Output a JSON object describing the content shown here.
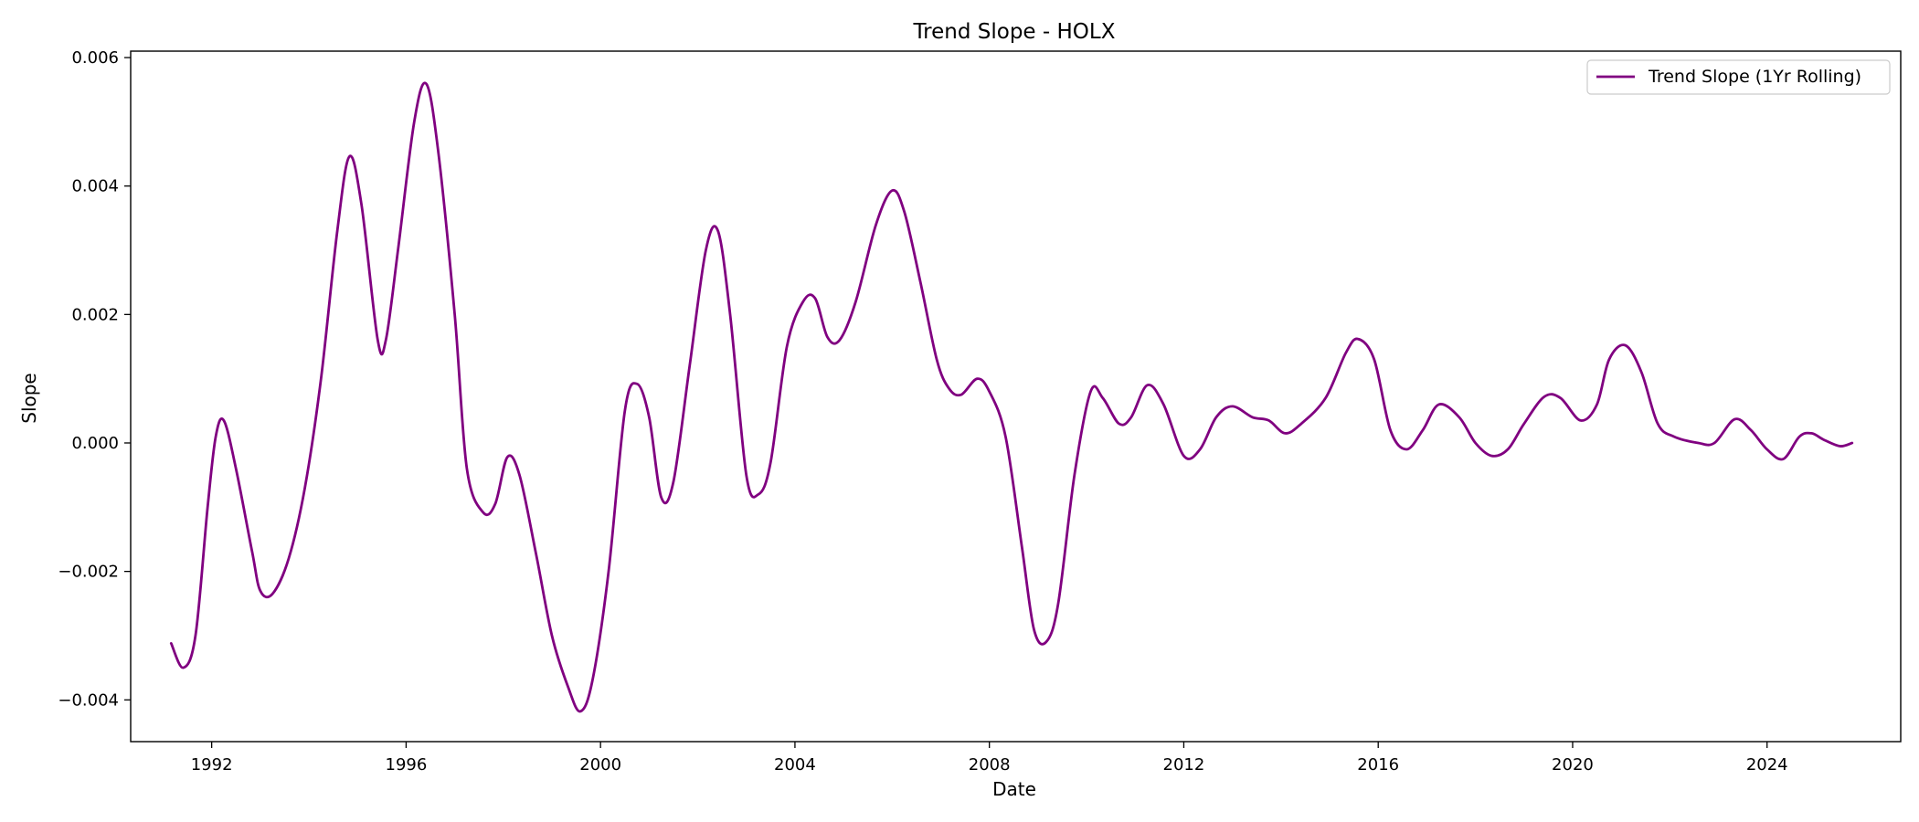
{
  "chart_data": {
    "type": "line",
    "title": "Trend Slope - HOLX",
    "xlabel": "Date",
    "ylabel": "Slope",
    "xlim": [
      "1990-05-01",
      "2026-10-01"
    ],
    "ylim": [
      -0.00465,
      0.0061
    ],
    "x_ticks": [
      "1992",
      "1996",
      "2000",
      "2004",
      "2008",
      "2012",
      "2016",
      "2020",
      "2024"
    ],
    "y_ticks": [
      "−0.004",
      "−0.002",
      "0.000",
      "0.002",
      "0.004",
      "0.006"
    ],
    "grid": false,
    "legend_position": "top-right",
    "line_color": "#800080",
    "series": [
      {
        "name": "Trend Slope (1Yr Rolling)",
        "points": [
          [
            "1991-03",
            -0.00312
          ],
          [
            "1991-06",
            -0.0035
          ],
          [
            "1991-09",
            -0.003
          ],
          [
            "1991-12",
            -0.001
          ],
          [
            "1992-02",
            0.0001
          ],
          [
            "1992-04",
            0.00035
          ],
          [
            "1992-07",
            -0.0004
          ],
          [
            "1992-11",
            -0.0017
          ],
          [
            "1993-01",
            -0.0023
          ],
          [
            "1993-04",
            -0.00235
          ],
          [
            "1993-08",
            -0.0018
          ],
          [
            "1993-12",
            -0.0007
          ],
          [
            "1994-04",
            0.001
          ],
          [
            "1994-08",
            0.0033
          ],
          [
            "1994-11",
            0.00446
          ],
          [
            "1995-02",
            0.0037
          ],
          [
            "1995-06",
            0.0016
          ],
          [
            "1995-08",
            0.0016
          ],
          [
            "1995-11",
            0.003
          ],
          [
            "1996-03",
            0.005
          ],
          [
            "1996-06",
            0.00559
          ],
          [
            "1996-09",
            0.0045
          ],
          [
            "1997-01",
            0.002
          ],
          [
            "1997-04",
            -0.0004
          ],
          [
            "1997-08",
            -0.00108
          ],
          [
            "1997-11",
            -0.00095
          ],
          [
            "1998-02",
            -0.00022
          ],
          [
            "1998-05",
            -0.0005
          ],
          [
            "1998-09",
            -0.0017
          ],
          [
            "1999-01",
            -0.003
          ],
          [
            "1999-05",
            -0.0038
          ],
          [
            "1999-08",
            -0.00418
          ],
          [
            "1999-11",
            -0.0037
          ],
          [
            "2000-03",
            -0.002
          ],
          [
            "2000-07",
            0.0005
          ],
          [
            "2000-10",
            0.00092
          ],
          [
            "2001-01",
            0.0004
          ],
          [
            "2001-04",
            -0.00085
          ],
          [
            "2001-07",
            -0.0006
          ],
          [
            "2001-11",
            0.0012
          ],
          [
            "2002-03",
            0.003
          ],
          [
            "2002-06",
            0.0033
          ],
          [
            "2002-09",
            0.002
          ],
          [
            "2003-01",
            -0.0005
          ],
          [
            "2003-04",
            -0.0008
          ],
          [
            "2003-07",
            -0.0003
          ],
          [
            "2003-11",
            0.0015
          ],
          [
            "2004-03",
            0.0022
          ],
          [
            "2004-06",
            0.00225
          ],
          [
            "2004-09",
            0.00165
          ],
          [
            "2004-12",
            0.0016
          ],
          [
            "2005-04",
            0.0022
          ],
          [
            "2005-09",
            0.0034
          ],
          [
            "2006-01",
            0.00393
          ],
          [
            "2006-04",
            0.0036
          ],
          [
            "2006-08",
            0.0025
          ],
          [
            "2006-12",
            0.0013
          ],
          [
            "2007-03",
            0.00085
          ],
          [
            "2007-06",
            0.00075
          ],
          [
            "2007-10",
            0.001
          ],
          [
            "2008-01",
            0.0008
          ],
          [
            "2008-05",
            0.0001
          ],
          [
            "2008-09",
            -0.0016
          ],
          [
            "2008-12",
            -0.0029
          ],
          [
            "2009-03",
            -0.0031
          ],
          [
            "2009-06",
            -0.0025
          ],
          [
            "2009-10",
            -0.0005
          ],
          [
            "2010-02",
            0.0008
          ],
          [
            "2010-05",
            0.0007
          ],
          [
            "2010-09",
            0.0003
          ],
          [
            "2010-12",
            0.0004
          ],
          [
            "2011-04",
            0.0009
          ],
          [
            "2011-08",
            0.0006
          ],
          [
            "2012-01",
            -0.0002
          ],
          [
            "2012-05",
            -0.0001
          ],
          [
            "2012-09",
            0.0004
          ],
          [
            "2013-01",
            0.00057
          ],
          [
            "2013-06",
            0.0004
          ],
          [
            "2013-10",
            0.00035
          ],
          [
            "2014-02",
            0.00015
          ],
          [
            "2014-06",
            0.0003
          ],
          [
            "2014-12",
            0.0007
          ],
          [
            "2015-05",
            0.0014
          ],
          [
            "2015-08",
            0.00162
          ],
          [
            "2015-12",
            0.0013
          ],
          [
            "2016-04",
            0.0002
          ],
          [
            "2016-08",
            -0.0001
          ],
          [
            "2016-12",
            0.0002
          ],
          [
            "2017-04",
            0.0006
          ],
          [
            "2017-09",
            0.0004
          ],
          [
            "2018-01",
            0.0
          ],
          [
            "2018-05",
            -0.0002
          ],
          [
            "2018-09",
            -0.0001
          ],
          [
            "2019-01",
            0.0003
          ],
          [
            "2019-06",
            0.00072
          ],
          [
            "2019-10",
            0.0007
          ],
          [
            "2020-03",
            0.00035
          ],
          [
            "2020-07",
            0.0006
          ],
          [
            "2020-10",
            0.0013
          ],
          [
            "2021-02",
            0.00152
          ],
          [
            "2021-06",
            0.0011
          ],
          [
            "2021-10",
            0.0003
          ],
          [
            "2022-02",
            0.0001
          ],
          [
            "2022-08",
            0.0
          ],
          [
            "2022-12",
            0.0
          ],
          [
            "2023-05",
            0.00037
          ],
          [
            "2023-09",
            0.0002
          ],
          [
            "2024-01",
            -0.0001
          ],
          [
            "2024-05",
            -0.00025
          ],
          [
            "2024-09",
            0.0001
          ],
          [
            "2024-12",
            0.00015
          ],
          [
            "2025-03",
            5e-05
          ],
          [
            "2025-07",
            -5e-05
          ],
          [
            "2025-10",
            0.0
          ]
        ]
      }
    ]
  }
}
